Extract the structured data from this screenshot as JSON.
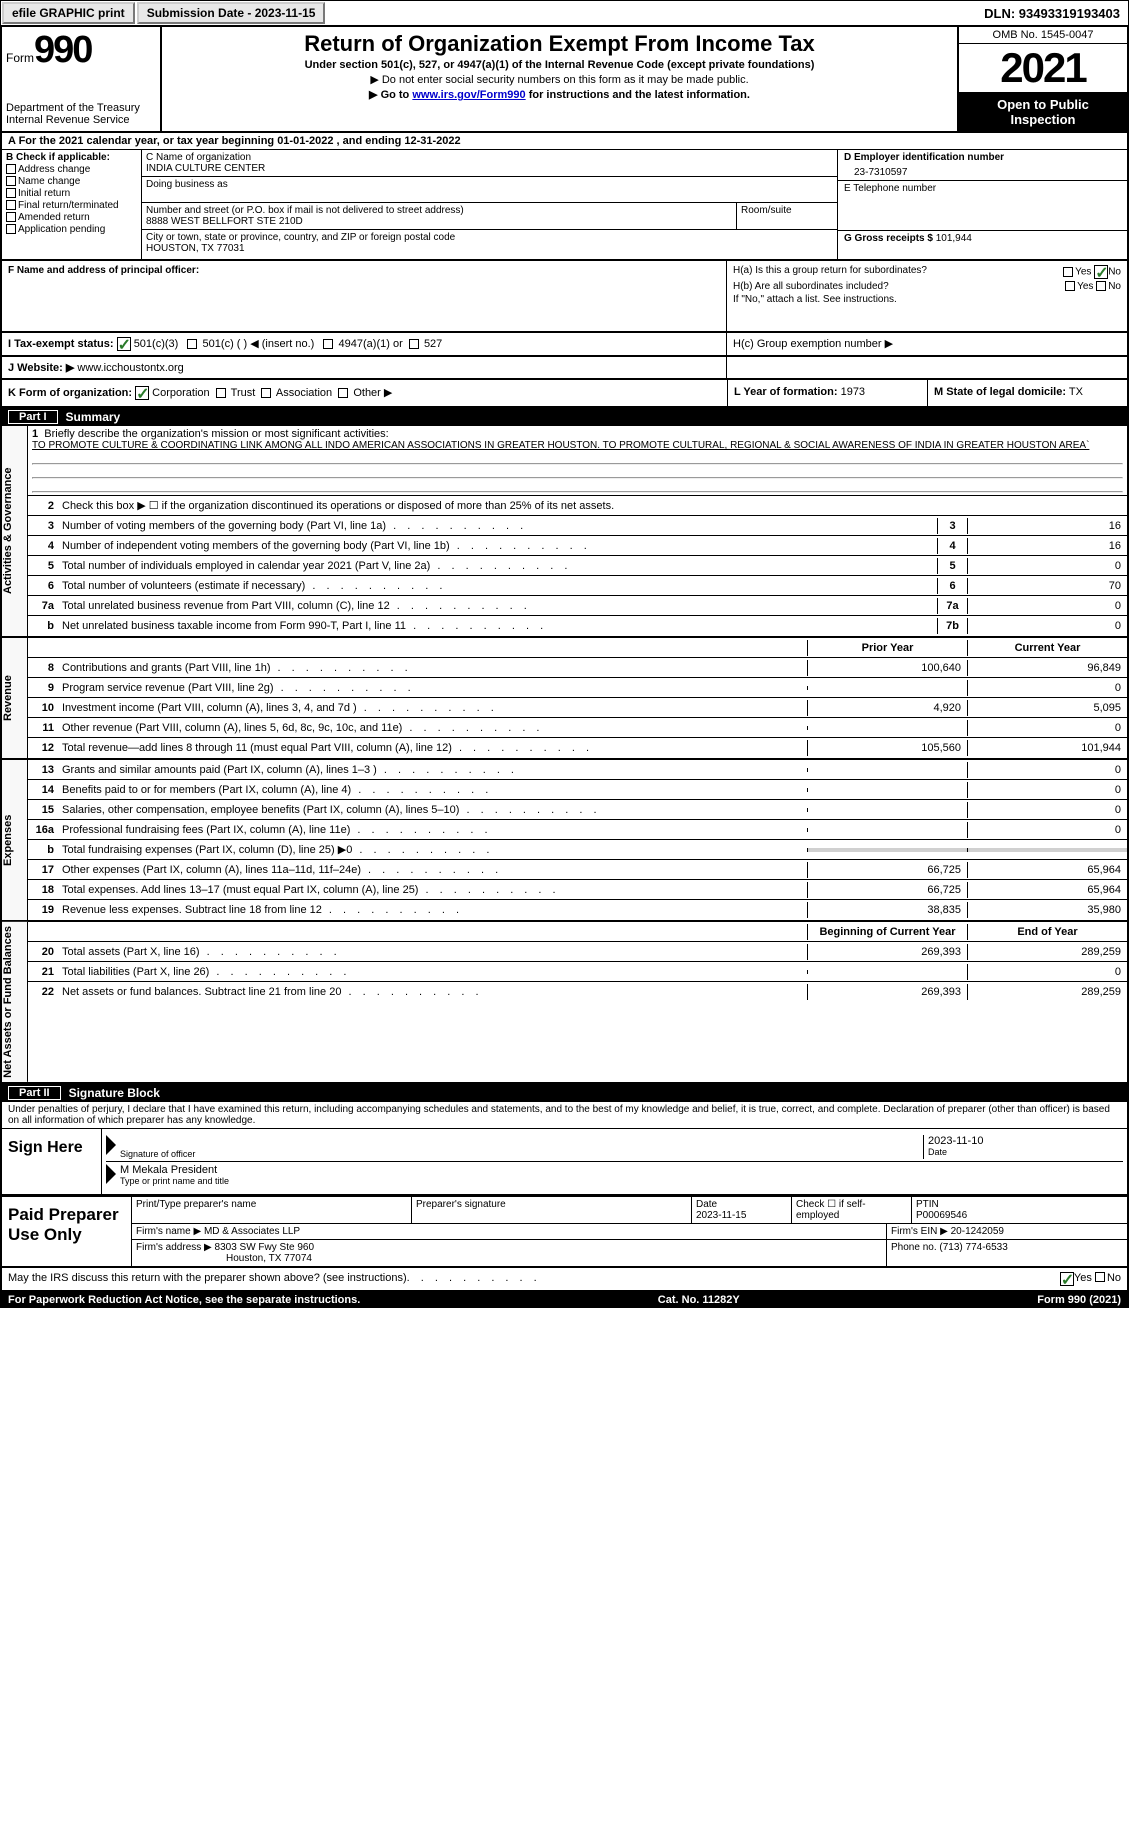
{
  "topbar": {
    "efile": "efile GRAPHIC print",
    "submission": "Submission Date - 2023-11-15",
    "dln": "DLN: 93493319193403"
  },
  "header": {
    "form_word": "Form",
    "form_num": "990",
    "title": "Return of Organization Exempt From Income Tax",
    "sub1": "Under section 501(c), 527, or 4947(a)(1) of the Internal Revenue Code (except private foundations)",
    "sub2": "▶ Do not enter social security numbers on this form as it may be made public.",
    "sub3_pre": "▶ Go to ",
    "sub3_link": "www.irs.gov/Form990",
    "sub3_post": " for instructions and the latest information.",
    "dept": "Department of the Treasury",
    "irs": "Internal Revenue Service",
    "omb": "OMB No. 1545-0047",
    "year": "2021",
    "inspection": "Open to Public Inspection"
  },
  "lineA": "A For the 2021 calendar year, or tax year beginning 01-01-2022   , and ending 12-31-2022",
  "colB": {
    "hdr": "B Check if applicable:",
    "items": [
      "Address change",
      "Name change",
      "Initial return",
      "Final return/terminated",
      "Amended return",
      "Application pending"
    ]
  },
  "colC": {
    "name_lbl": "C Name of organization",
    "name": "INDIA CULTURE CENTER",
    "dba_lbl": "Doing business as",
    "addr_lbl": "Number and street (or P.O. box if mail is not delivered to street address)",
    "room_lbl": "Room/suite",
    "addr": "8888 WEST BELLFORT STE 210D",
    "city_lbl": "City or town, state or province, country, and ZIP or foreign postal code",
    "city": "HOUSTON, TX  77031"
  },
  "colD": {
    "ein_lbl": "D Employer identification number",
    "ein": "23-7310597",
    "tel_lbl": "E Telephone number",
    "gross_lbl": "G Gross receipts $",
    "gross": "101,944"
  },
  "rowF": {
    "lbl": "F Name and address of principal officer:"
  },
  "rowH": {
    "ha": "H(a)  Is this a group return for subordinates?",
    "hb": "H(b)  Are all subordinates included?",
    "hb_note": "If \"No,\" attach a list. See instructions.",
    "hc": "H(c)  Group exemption number ▶",
    "yes": "Yes",
    "no": "No"
  },
  "rowI": {
    "lbl": "I    Tax-exempt status:",
    "opts": [
      "501(c)(3)",
      "501(c) (  ) ◀ (insert no.)",
      "4947(a)(1) or",
      "527"
    ]
  },
  "rowJ": {
    "lbl": "J   Website: ▶",
    "val": "www.icchoustontx.org"
  },
  "rowK": {
    "lbl": "K Form of organization:",
    "opts": [
      "Corporation",
      "Trust",
      "Association",
      "Other ▶"
    ],
    "l_lbl": "L Year of formation:",
    "l_val": "1973",
    "m_lbl": "M State of legal domicile:",
    "m_val": "TX"
  },
  "part1": {
    "hdr_part": "Part I",
    "hdr_title": "Summary",
    "vtab_ag": "Activities & Governance",
    "vtab_rev": "Revenue",
    "vtab_exp": "Expenses",
    "vtab_na": "Net Assets or Fund Balances",
    "line1_lbl": "Briefly describe the organization's mission or most significant activities:",
    "line1_val": "TO PROMOTE CULTURE & COORDINATING LINK AMONG ALL INDO AMERICAN ASSOCIATIONS IN GREATER HOUSTON. TO PROMOTE CULTURAL, REGIONAL & SOCIAL AWARENESS OF INDIA IN GREATER HOUSTON AREA`",
    "line2": "Check this box ▶ ☐ if the organization discontinued its operations or disposed of more than 25% of its net assets.",
    "rows_ag": [
      {
        "n": "3",
        "d": "Number of voting members of the governing body (Part VI, line 1a)",
        "bn": "3",
        "v": "16"
      },
      {
        "n": "4",
        "d": "Number of independent voting members of the governing body (Part VI, line 1b)",
        "bn": "4",
        "v": "16"
      },
      {
        "n": "5",
        "d": "Total number of individuals employed in calendar year 2021 (Part V, line 2a)",
        "bn": "5",
        "v": "0"
      },
      {
        "n": "6",
        "d": "Total number of volunteers (estimate if necessary)",
        "bn": "6",
        "v": "70"
      },
      {
        "n": "7a",
        "d": "Total unrelated business revenue from Part VIII, column (C), line 12",
        "bn": "7a",
        "v": "0"
      },
      {
        "n": "b",
        "d": "Net unrelated business taxable income from Form 990-T, Part I, line 11",
        "bn": "7b",
        "v": "0"
      }
    ],
    "hdr_py": "Prior Year",
    "hdr_cy": "Current Year",
    "rows_rev": [
      {
        "n": "8",
        "d": "Contributions and grants (Part VIII, line 1h)",
        "py": "100,640",
        "cy": "96,849"
      },
      {
        "n": "9",
        "d": "Program service revenue (Part VIII, line 2g)",
        "py": "",
        "cy": "0"
      },
      {
        "n": "10",
        "d": "Investment income (Part VIII, column (A), lines 3, 4, and 7d )",
        "py": "4,920",
        "cy": "5,095"
      },
      {
        "n": "11",
        "d": "Other revenue (Part VIII, column (A), lines 5, 6d, 8c, 9c, 10c, and 11e)",
        "py": "",
        "cy": "0"
      },
      {
        "n": "12",
        "d": "Total revenue—add lines 8 through 11 (must equal Part VIII, column (A), line 12)",
        "py": "105,560",
        "cy": "101,944"
      }
    ],
    "rows_exp": [
      {
        "n": "13",
        "d": "Grants and similar amounts paid (Part IX, column (A), lines 1–3 )",
        "py": "",
        "cy": "0"
      },
      {
        "n": "14",
        "d": "Benefits paid to or for members (Part IX, column (A), line 4)",
        "py": "",
        "cy": "0"
      },
      {
        "n": "15",
        "d": "Salaries, other compensation, employee benefits (Part IX, column (A), lines 5–10)",
        "py": "",
        "cy": "0"
      },
      {
        "n": "16a",
        "d": "Professional fundraising fees (Part IX, column (A), line 11e)",
        "py": "",
        "cy": "0"
      },
      {
        "n": "b",
        "d": "Total fundraising expenses (Part IX, column (D), line 25) ▶0",
        "py": "GRAY",
        "cy": "GRAY"
      },
      {
        "n": "17",
        "d": "Other expenses (Part IX, column (A), lines 11a–11d, 11f–24e)",
        "py": "66,725",
        "cy": "65,964"
      },
      {
        "n": "18",
        "d": "Total expenses. Add lines 13–17 (must equal Part IX, column (A), line 25)",
        "py": "66,725",
        "cy": "65,964"
      },
      {
        "n": "19",
        "d": "Revenue less expenses. Subtract line 18 from line 12",
        "py": "38,835",
        "cy": "35,980"
      }
    ],
    "hdr_bcy": "Beginning of Current Year",
    "hdr_eoy": "End of Year",
    "rows_na": [
      {
        "n": "20",
        "d": "Total assets (Part X, line 16)",
        "py": "269,393",
        "cy": "289,259"
      },
      {
        "n": "21",
        "d": "Total liabilities (Part X, line 26)",
        "py": "",
        "cy": "0"
      },
      {
        "n": "22",
        "d": "Net assets or fund balances. Subtract line 21 from line 20",
        "py": "269,393",
        "cy": "289,259"
      }
    ]
  },
  "part2": {
    "hdr_part": "Part II",
    "hdr_title": "Signature Block",
    "penalty": "Under penalties of perjury, I declare that I have examined this return, including accompanying schedules and statements, and to the best of my knowledge and belief, it is true, correct, and complete. Declaration of preparer (other than officer) is based on all information of which preparer has any knowledge.",
    "sign_here": "Sign Here",
    "sig_officer": "Signature of officer",
    "sig_date": "2023-11-10",
    "date_lbl": "Date",
    "name_title": "M Mekala  President",
    "name_lbl": "Type or print name and title",
    "paid_lbl": "Paid Preparer Use Only",
    "prep_name_lbl": "Print/Type preparer's name",
    "prep_sig_lbl": "Preparer's signature",
    "prep_date_lbl": "Date",
    "prep_date": "2023-11-15",
    "check_se": "Check ☐ if self-employed",
    "ptin_lbl": "PTIN",
    "ptin": "P00069546",
    "firm_name_lbl": "Firm's name    ▶",
    "firm_name": "MD & Associates LLP",
    "firm_ein_lbl": "Firm's EIN ▶",
    "firm_ein": "20-1242059",
    "firm_addr_lbl": "Firm's address ▶",
    "firm_addr1": "8303 SW Fwy Ste 960",
    "firm_addr2": "Houston, TX  77074",
    "phone_lbl": "Phone no.",
    "phone": "(713) 774-6533",
    "discuss": "May the IRS discuss this return with the preparer shown above? (see instructions)",
    "yes": "Yes",
    "no": "No"
  },
  "footer": {
    "pra": "For Paperwork Reduction Act Notice, see the separate instructions.",
    "cat": "Cat. No. 11282Y",
    "form": "Form 990 (2021)"
  }
}
